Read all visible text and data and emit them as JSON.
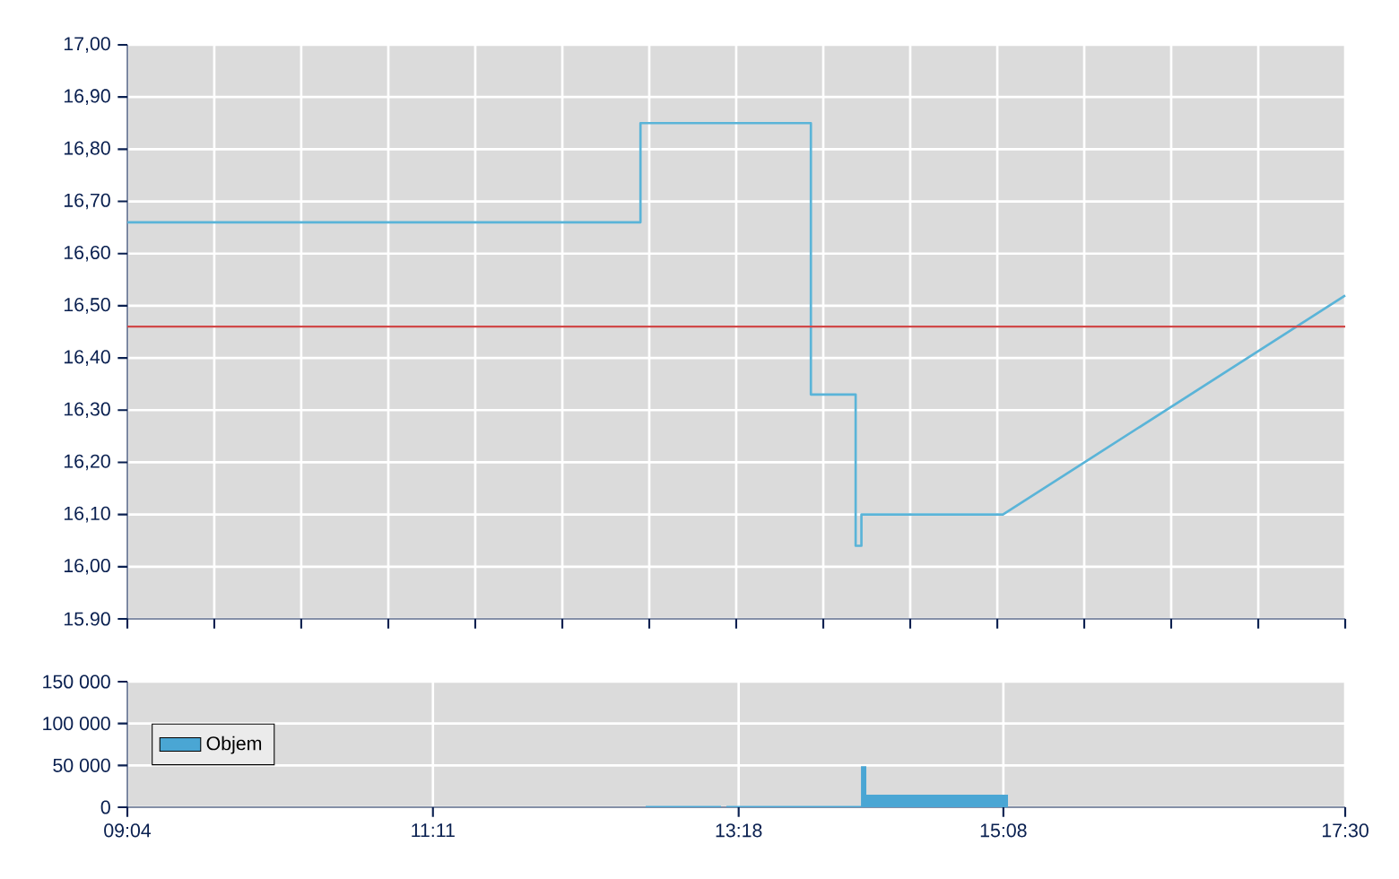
{
  "chart_data": [
    {
      "type": "line",
      "x": [
        9.067,
        12.62,
        12.62,
        13.8,
        13.8,
        14.11,
        14.11,
        14.15,
        14.15,
        15.13,
        17.5
      ],
      "series": [
        {
          "color": "#5ab4d8",
          "values": [
            16.66,
            16.66,
            16.85,
            16.85,
            16.33,
            16.33,
            16.04,
            16.04,
            16.1,
            16.1,
            16.52
          ]
        }
      ],
      "xlim": [
        9.067,
        17.5
      ],
      "xticks": [
        {
          "value": 9.067,
          "label": null
        },
        {
          "value": 9.669,
          "label": null
        },
        {
          "value": 10.271,
          "label": null
        },
        {
          "value": 10.874,
          "label": null
        },
        {
          "value": 11.476,
          "label": null
        },
        {
          "value": 12.079,
          "label": null
        },
        {
          "value": 12.681,
          "label": null
        },
        {
          "value": 13.283,
          "label": null
        },
        {
          "value": 13.886,
          "label": null
        },
        {
          "value": 14.488,
          "label": null
        },
        {
          "value": 15.091,
          "label": null
        },
        {
          "value": 15.693,
          "label": null
        },
        {
          "value": 16.295,
          "label": null
        },
        {
          "value": 16.898,
          "label": null
        },
        {
          "value": 17.5,
          "label": null
        }
      ],
      "ylim": [
        15.9,
        17.0
      ],
      "yticks": [
        {
          "value": 15.9,
          "label": "15.90"
        },
        {
          "value": 16.0,
          "label": "16,00"
        },
        {
          "value": 16.1,
          "label": "16,10"
        },
        {
          "value": 16.2,
          "label": "16,20"
        },
        {
          "value": 16.3,
          "label": "16,30"
        },
        {
          "value": 16.4,
          "label": "16,40"
        },
        {
          "value": 16.5,
          "label": "16,50"
        },
        {
          "value": 16.6,
          "label": "16,60"
        },
        {
          "value": 16.7,
          "label": "16,70"
        },
        {
          "value": 16.8,
          "label": "16,80"
        },
        {
          "value": 16.9,
          "label": "16,90"
        },
        {
          "value": 17.0,
          "label": "17,00"
        }
      ],
      "ref_lines": [
        {
          "axis": "y",
          "value": 16.46,
          "color": "#d04848"
        }
      ],
      "tick_labels": "y",
      "grid": true
    },
    {
      "type": "area",
      "x": [
        9.067,
        12.656,
        12.656,
        13.178,
        13.178,
        13.215,
        13.215,
        14.147,
        14.147,
        14.184,
        14.184,
        15.165,
        15.165,
        17.5
      ],
      "series": [
        {
          "name": "Objem",
          "color": "#4aa6d4",
          "values": [
            0,
            0,
            1500,
            1500,
            0,
            0,
            1500,
            1500,
            49000,
            49000,
            15000,
            15000,
            0,
            0
          ]
        }
      ],
      "xlim": [
        9.067,
        17.5
      ],
      "xticks": [
        {
          "value": 9.067,
          "label": "09:04"
        },
        {
          "value": 11.183,
          "label": "11:11"
        },
        {
          "value": 13.3,
          "label": "13:18"
        },
        {
          "value": 15.133,
          "label": "15:08"
        },
        {
          "value": 17.5,
          "label": "17:30"
        }
      ],
      "ylim": [
        0,
        150000
      ],
      "yticks": [
        {
          "value": 0,
          "label": "0"
        },
        {
          "value": 50000,
          "label": "50 000"
        },
        {
          "value": 100000,
          "label": "100 000"
        },
        {
          "value": 150000,
          "label": "150 000"
        }
      ],
      "legend": "left",
      "grid": true
    }
  ]
}
